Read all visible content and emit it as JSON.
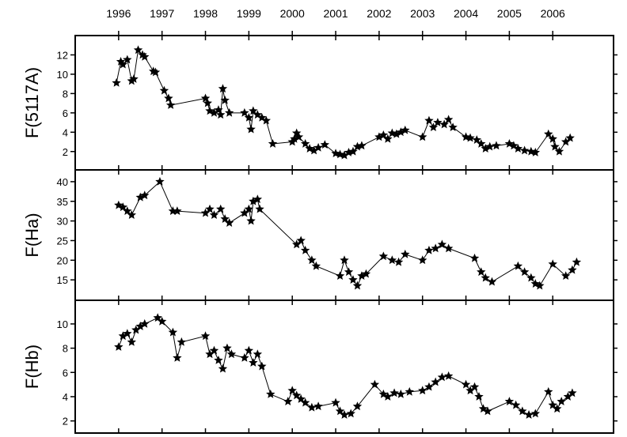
{
  "chart_data": [
    {
      "type": "scatter",
      "ylabel": "F(5117A)",
      "color": "#000000",
      "line": true,
      "xlim": [
        1995,
        2007.4
      ],
      "xticks": [
        1996,
        1997,
        1998,
        1999,
        2000,
        2001,
        2002,
        2003,
        2004,
        2005,
        2006
      ],
      "ylim": [
        0.1,
        14
      ],
      "yticks": [
        2,
        4,
        6,
        8,
        10,
        12
      ],
      "x": [
        1995.95,
        1996.05,
        1996.1,
        1996.2,
        1996.3,
        1996.35,
        1996.45,
        1996.55,
        1996.6,
        1996.8,
        1996.85,
        1997.05,
        1997.15,
        1997.2,
        1998.0,
        1998.05,
        1998.1,
        1998.2,
        1998.3,
        1998.35,
        1998.4,
        1998.45,
        1998.55,
        1998.9,
        1999.0,
        1999.05,
        1999.1,
        1999.2,
        1999.3,
        1999.4,
        1999.55,
        2000.0,
        2000.05,
        2000.1,
        2000.15,
        2000.3,
        2000.4,
        2000.5,
        2000.6,
        2000.75,
        2001.0,
        2001.1,
        2001.2,
        2001.3,
        2001.4,
        2001.5,
        2001.6,
        2002.0,
        2002.1,
        2002.2,
        2002.3,
        2002.4,
        2002.5,
        2002.6,
        2003.0,
        2003.15,
        2003.25,
        2003.35,
        2003.5,
        2003.6,
        2003.7,
        2004.0,
        2004.1,
        2004.25,
        2004.35,
        2004.45,
        2004.55,
        2004.7,
        2005.0,
        2005.1,
        2005.2,
        2005.35,
        2005.5,
        2005.6,
        2005.9,
        2006.0,
        2006.05,
        2006.15,
        2006.3,
        2006.4
      ],
      "values": [
        9.1,
        11.3,
        11.0,
        11.5,
        9.3,
        9.5,
        12.5,
        12.0,
        11.8,
        10.3,
        10.2,
        8.3,
        7.5,
        6.8,
        7.5,
        7.0,
        6.2,
        6.0,
        6.3,
        5.8,
        8.5,
        7.3,
        6.0,
        6.0,
        5.5,
        4.3,
        6.2,
        5.8,
        5.5,
        5.2,
        2.8,
        3.0,
        3.3,
        3.9,
        3.5,
        2.8,
        2.3,
        2.1,
        2.4,
        2.7,
        1.8,
        1.7,
        1.6,
        1.9,
        2.0,
        2.5,
        2.6,
        3.5,
        3.7,
        3.3,
        3.9,
        3.8,
        4.0,
        4.2,
        3.5,
        5.2,
        4.5,
        5.0,
        4.8,
        5.3,
        4.5,
        3.5,
        3.4,
        3.2,
        2.8,
        2.3,
        2.5,
        2.6,
        2.8,
        2.6,
        2.3,
        2.1,
        2.0,
        1.9,
        3.8,
        3.3,
        2.5,
        2.0,
        3.0,
        3.4
      ]
    },
    {
      "type": "scatter",
      "ylabel": "F(Ha)",
      "color": "#000000",
      "line": true,
      "xlim": [
        1995,
        2007.4
      ],
      "ylim": [
        9.8,
        43
      ],
      "yticks": [
        15,
        20,
        25,
        30,
        35,
        40
      ],
      "x": [
        1996.0,
        1996.1,
        1996.2,
        1996.3,
        1996.5,
        1996.6,
        1996.95,
        1997.25,
        1997.35,
        1998.0,
        1998.1,
        1998.2,
        1998.35,
        1998.45,
        1998.55,
        1998.9,
        1999.0,
        1999.05,
        1999.1,
        1999.2,
        1999.25,
        2000.1,
        2000.2,
        2000.3,
        2000.45,
        2000.55,
        2001.1,
        2001.2,
        2001.3,
        2001.4,
        2001.5,
        2001.6,
        2001.7,
        2002.1,
        2002.3,
        2002.45,
        2002.6,
        2003.0,
        2003.15,
        2003.3,
        2003.45,
        2003.6,
        2004.2,
        2004.35,
        2004.45,
        2004.6,
        2005.2,
        2005.35,
        2005.5,
        2005.6,
        2005.7,
        2006.0,
        2006.3,
        2006.45,
        2006.55
      ],
      "values": [
        34,
        33.5,
        32.5,
        31.5,
        36,
        36.5,
        40,
        32.5,
        32.5,
        32,
        33,
        31.5,
        33,
        30.5,
        29.5,
        32,
        33,
        30,
        35,
        35.5,
        33,
        24,
        25,
        22.5,
        20,
        18.5,
        16,
        20,
        17,
        15,
        13.5,
        16,
        16.5,
        21,
        20,
        19.5,
        21.5,
        20,
        22.5,
        23,
        24,
        23,
        20.5,
        17,
        15.5,
        14.5,
        18.5,
        17,
        15.5,
        14,
        13.5,
        19,
        16,
        17.5,
        19.5
      ]
    },
    {
      "type": "scatter",
      "ylabel": "F(Hb)",
      "color": "#000000",
      "line": true,
      "xlim": [
        1995,
        2007.4
      ],
      "ylim": [
        1,
        11.95
      ],
      "yticks": [
        2,
        4,
        6,
        8,
        10
      ],
      "x": [
        1996.0,
        1996.1,
        1996.2,
        1996.3,
        1996.4,
        1996.5,
        1996.6,
        1996.9,
        1997.0,
        1997.25,
        1997.35,
        1997.45,
        1998.0,
        1998.1,
        1998.2,
        1998.3,
        1998.4,
        1998.5,
        1998.6,
        1998.9,
        1999.0,
        1999.1,
        1999.2,
        1999.3,
        1999.5,
        1999.9,
        2000.0,
        2000.1,
        2000.2,
        2000.3,
        2000.45,
        2000.6,
        2001.0,
        2001.1,
        2001.2,
        2001.35,
        2001.5,
        2001.9,
        2002.1,
        2002.2,
        2002.35,
        2002.5,
        2002.7,
        2003.0,
        2003.15,
        2003.3,
        2003.45,
        2003.6,
        2004.0,
        2004.1,
        2004.2,
        2004.3,
        2004.4,
        2004.5,
        2005.0,
        2005.15,
        2005.3,
        2005.45,
        2005.6,
        2005.9,
        2006.0,
        2006.1,
        2006.2,
        2006.35,
        2006.45
      ],
      "values": [
        8.1,
        9.0,
        9.2,
        8.5,
        9.5,
        9.8,
        10.0,
        10.5,
        10.2,
        9.3,
        7.2,
        8.5,
        9.0,
        7.5,
        7.8,
        7.0,
        6.3,
        8.0,
        7.5,
        7.2,
        7.8,
        6.8,
        7.5,
        6.5,
        4.2,
        3.6,
        4.5,
        4.1,
        3.8,
        3.5,
        3.1,
        3.2,
        3.5,
        2.8,
        2.5,
        2.6,
        3.2,
        5.0,
        4.2,
        4.0,
        4.3,
        4.2,
        4.4,
        4.5,
        4.8,
        5.2,
        5.6,
        5.7,
        5.0,
        4.5,
        4.8,
        4.0,
        3.0,
        2.8,
        3.6,
        3.3,
        2.8,
        2.5,
        2.6,
        4.4,
        3.3,
        3.0,
        3.6,
        4.0,
        4.3
      ]
    }
  ]
}
